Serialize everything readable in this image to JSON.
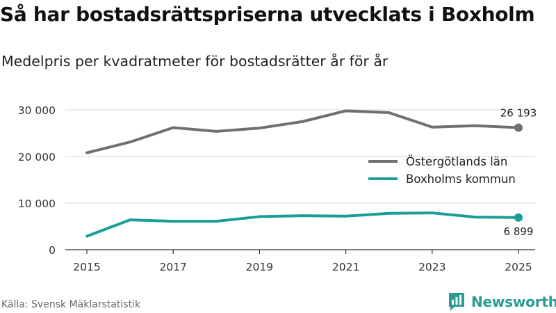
{
  "title": "Så har bostadsrättspriserna utvecklats i Boxholm",
  "subtitle": "Medelpris per kvadratmeter för bostadsrätter år för år",
  "source": "Källa: Svensk Mäklarstatistik",
  "brand": "Newsworthy",
  "colors": {
    "gray_series": "#707074",
    "teal_series": "#1a9e96",
    "grid": "#dddddd",
    "axis": "#333333",
    "brand": "#2a9d93"
  },
  "chart_data": {
    "type": "line",
    "title": "Så har bostadsrättspriserna utvecklats i Boxholm",
    "xlabel": "",
    "ylabel": "",
    "x": [
      2015,
      2016,
      2017,
      2018,
      2019,
      2020,
      2021,
      2022,
      2023,
      2024,
      2025
    ],
    "xticks": [
      "2015",
      "2017",
      "2019",
      "2021",
      "2023",
      "2025"
    ],
    "ylim": [
      0,
      30000
    ],
    "yticks": [
      "0",
      "10 000",
      "20 000",
      "30 000"
    ],
    "ytick_values": [
      0,
      10000,
      20000,
      30000
    ],
    "grid": true,
    "legend_position": "right",
    "series": [
      {
        "name": "Östergötlands län",
        "values": [
          20800,
          23100,
          26200,
          25400,
          26100,
          27500,
          29800,
          29400,
          26300,
          26600,
          26193
        ],
        "end_label": "26 193",
        "color_key": "gray_series"
      },
      {
        "name": "Boxholms kommun",
        "values": [
          2900,
          6400,
          6100,
          6100,
          7100,
          7300,
          7200,
          7800,
          7900,
          7000,
          6899
        ],
        "end_label": "6 899",
        "color_key": "teal_series"
      }
    ]
  }
}
